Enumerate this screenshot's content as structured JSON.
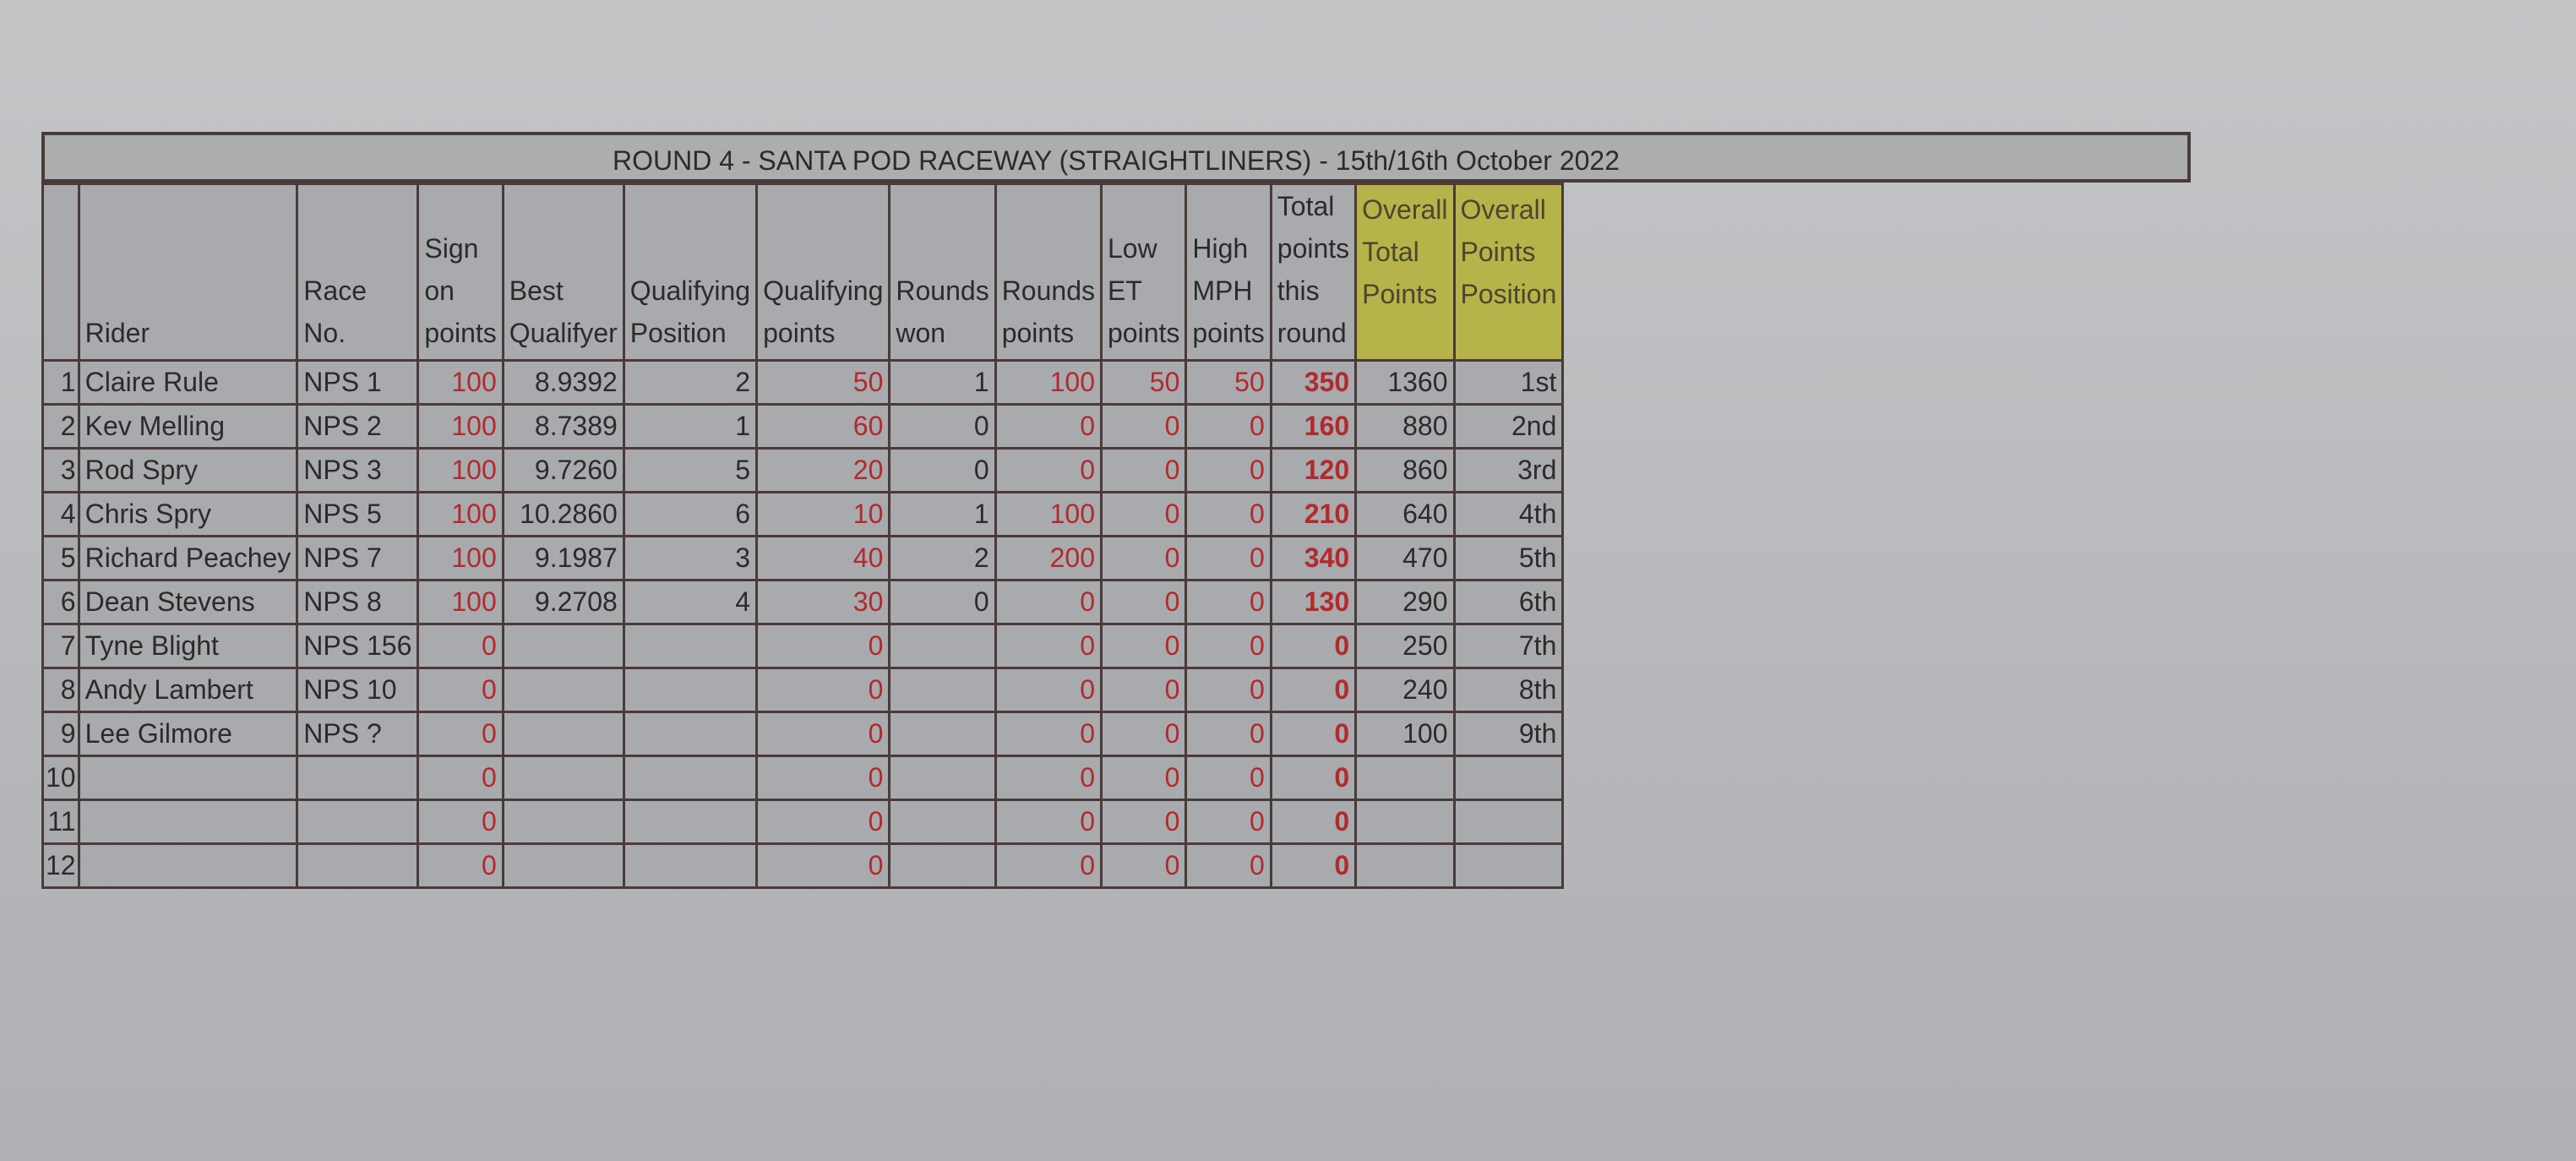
{
  "title": "ROUND 4 - SANTA POD RACEWAY (STRAIGHTLINERS) - 15th/16th October 2022",
  "headers": [
    "",
    "Rider",
    "Race No.",
    "Sign on points",
    "Best Qualifyer",
    "Qualifying Position",
    "Qualifying points",
    "Rounds won",
    "Rounds points",
    "Low ET points",
    "High MPH points",
    "Total points this round",
    "Overall Total Points",
    "Overall Points Position"
  ],
  "colors": {
    "red_values": "#b02a2e",
    "overall_header": "#b5b34a",
    "cell": "#a8aaad",
    "border": "#4a3a38"
  },
  "rows": [
    [
      "1",
      "Claire Rule",
      "NPS 1",
      "100",
      "8.9392",
      "2",
      "50",
      "1",
      "100",
      "50",
      "50",
      "350",
      "1360",
      "1st"
    ],
    [
      "2",
      "Kev Melling",
      "NPS 2",
      "100",
      "8.7389",
      "1",
      "60",
      "0",
      "0",
      "0",
      "0",
      "160",
      "880",
      "2nd"
    ],
    [
      "3",
      "Rod Spry",
      "NPS 3",
      "100",
      "9.7260",
      "5",
      "20",
      "0",
      "0",
      "0",
      "0",
      "120",
      "860",
      "3rd"
    ],
    [
      "4",
      "Chris Spry",
      "NPS 5",
      "100",
      "10.2860",
      "6",
      "10",
      "1",
      "100",
      "0",
      "0",
      "210",
      "640",
      "4th"
    ],
    [
      "5",
      "Richard Peachey",
      "NPS 7",
      "100",
      "9.1987",
      "3",
      "40",
      "2",
      "200",
      "0",
      "0",
      "340",
      "470",
      "5th"
    ],
    [
      "6",
      "Dean Stevens",
      "NPS 8",
      "100",
      "9.2708",
      "4",
      "30",
      "0",
      "0",
      "0",
      "0",
      "130",
      "290",
      "6th"
    ],
    [
      "7",
      "Tyne Blight",
      "NPS 156",
      "0",
      "",
      "",
      "0",
      "",
      "0",
      "0",
      "0",
      "0",
      "250",
      "7th"
    ],
    [
      "8",
      "Andy Lambert",
      "NPS 10",
      "0",
      "",
      "",
      "0",
      "",
      "0",
      "0",
      "0",
      "0",
      "240",
      "8th"
    ],
    [
      "9",
      "Lee Gilmore",
      "NPS ?",
      "0",
      "",
      "",
      "0",
      "",
      "0",
      "0",
      "0",
      "0",
      "100",
      "9th"
    ],
    [
      "10",
      "",
      "",
      "0",
      "",
      "",
      "0",
      "",
      "0",
      "0",
      "0",
      "0",
      "",
      ""
    ],
    [
      "11",
      "",
      "",
      "0",
      "",
      "",
      "0",
      "",
      "0",
      "0",
      "0",
      "0",
      "",
      ""
    ],
    [
      "12",
      "",
      "",
      "0",
      "",
      "",
      "0",
      "",
      "0",
      "0",
      "0",
      "0",
      "",
      ""
    ]
  ]
}
